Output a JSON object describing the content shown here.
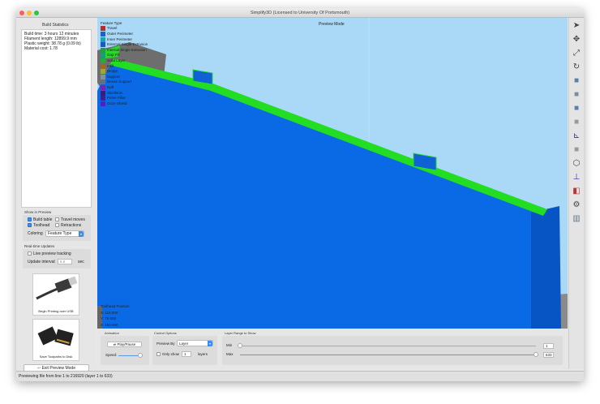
{
  "window": {
    "title": "Simplify3D (Licensed to University Of Portsmouth)"
  },
  "build_statistics": {
    "title": "Build Statistics",
    "lines": [
      "Build time: 3 hours 12 minutes",
      "Filament length: 12899.9 mm",
      "Plastic weight: 38.78 g (0.09 lb)",
      "Material cost: 1.78"
    ]
  },
  "show_in_preview": {
    "title": "Show in Preview",
    "build_table": {
      "label": "Build table",
      "checked": true
    },
    "travel_moves": {
      "label": "Travel moves",
      "checked": false
    },
    "toolhead": {
      "label": "Toolhead",
      "checked": true
    },
    "retractions": {
      "label": "Retractions",
      "checked": false
    },
    "coloring_label": "Coloring",
    "coloring_value": "Feature Type"
  },
  "realtime": {
    "title": "Real-time Updates",
    "live_tracking": {
      "label": "Live preview tracking",
      "checked": false
    },
    "interval_label": "Update interval",
    "interval_value": "5.0",
    "interval_unit": "sec"
  },
  "cards": {
    "usb": "Begin Printing over USB",
    "disk": "Save Toolpaths to Disk"
  },
  "exit_button": "Exit Preview Mode",
  "viewport": {
    "mode": "Preview Mode",
    "legend_title": "Feature Type",
    "legend": [
      {
        "label": "Travel",
        "color": "#b03030"
      },
      {
        "label": "Outer Perimeter",
        "color": "#2060c0"
      },
      {
        "label": "Inner Perimeter",
        "color": "#20a0b0"
      },
      {
        "label": "External Single Extrusion",
        "color": "#1a58c8"
      },
      {
        "label": "Internal Single Extrusion",
        "color": "#20a040"
      },
      {
        "label": "Gap Fill",
        "color": "#10a080"
      },
      {
        "label": "Solid Layer",
        "color": "#20b030"
      },
      {
        "label": "Infill",
        "color": "#a06820"
      },
      {
        "label": "Bridge",
        "color": "#90b030"
      },
      {
        "label": "Support",
        "color": "#8090a0"
      },
      {
        "label": "Dense Support",
        "color": "#607080"
      },
      {
        "label": "Raft",
        "color": "#8020b0"
      },
      {
        "label": "Skirt/Brim",
        "color": "#302080"
      },
      {
        "label": "Prime Pillar",
        "color": "#402090"
      },
      {
        "label": "Ooze Shield",
        "color": "#5020c0"
      }
    ],
    "toolhead_title": "Toolhead Position",
    "x": "X: 115.000",
    "y": "Y: 75.000",
    "z": "Z: 160.000"
  },
  "animation": {
    "title": "Animation",
    "play": "Play/Pause",
    "speed": "Speed:",
    "speed_level": 1.0
  },
  "control": {
    "title": "Control Options",
    "preview_by": "Preview By",
    "preview_value": "Layer",
    "only_show": "Only show",
    "only_value": "1",
    "layers": "layers",
    "only_checked": false
  },
  "layer_range": {
    "title": "Layer Range to Show",
    "min_label": "Min",
    "max_label": "Max",
    "min": "1",
    "max": "633"
  },
  "status": "Previewing file from line 1 to 216920 (layer 1 to 633)",
  "toolbar": [
    "cursor-icon",
    "move-icon",
    "scale-icon",
    "rotate-icon",
    "view-iso-icon",
    "view-front-icon",
    "view-side-icon",
    "view-top-icon",
    "axes-icon",
    "solid-view-icon",
    "wireframe-icon",
    "toolhead-icon",
    "section-icon",
    "settings-icon",
    "gallery-icon"
  ]
}
